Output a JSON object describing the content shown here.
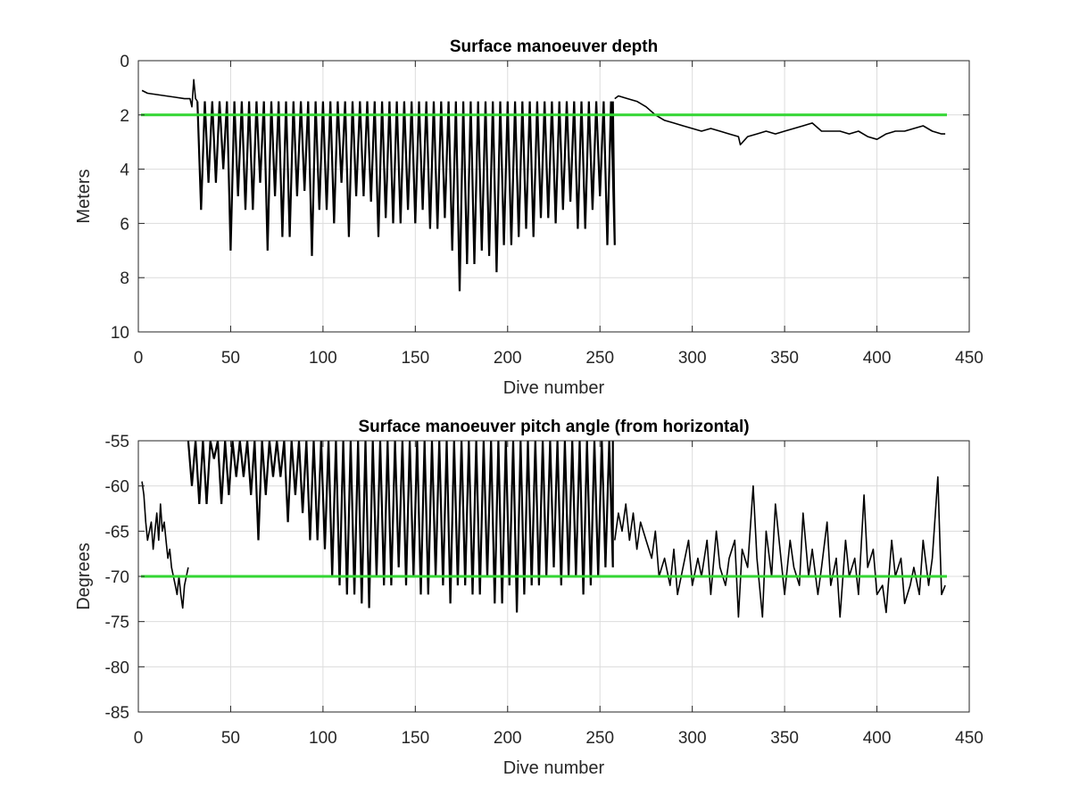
{
  "chart_data": [
    {
      "type": "line",
      "title": "Surface manoeuver depth",
      "xlabel": "Dive number",
      "ylabel": "Meters",
      "xlim": [
        0,
        450
      ],
      "ylim": [
        0,
        10
      ],
      "y_reversed": true,
      "xticks": [
        0,
        50,
        100,
        150,
        200,
        250,
        300,
        350,
        400,
        450
      ],
      "yticks": [
        0,
        2,
        4,
        6,
        8,
        10
      ],
      "grid": true,
      "colors": {
        "series": "#000000",
        "threshold": "#33d633"
      },
      "threshold": 2,
      "series": [
        {
          "segments": [
            {
              "x": [
                2,
                5,
                10,
                15,
                20,
                25,
                28,
                29,
                30,
                31,
                32
              ],
              "y": [
                1.1,
                1.2,
                1.25,
                1.3,
                1.35,
                1.4,
                1.4,
                1.7,
                0.7,
                1.4,
                1.5
              ]
            },
            {
              "x": [
                258,
                260,
                265,
                270,
                275,
                280,
                285,
                290,
                295,
                300,
                305,
                310,
                315,
                320,
                325,
                326,
                330,
                335,
                340,
                345,
                350,
                355,
                360,
                365,
                370,
                375,
                380,
                385,
                390,
                395,
                400,
                405,
                410,
                415,
                420,
                425,
                430,
                435,
                437
              ],
              "y": [
                1.4,
                1.3,
                1.4,
                1.5,
                1.7,
                2.0,
                2.2,
                2.3,
                2.4,
                2.5,
                2.6,
                2.5,
                2.6,
                2.7,
                2.8,
                3.1,
                2.8,
                2.7,
                2.6,
                2.7,
                2.6,
                2.5,
                2.4,
                2.3,
                2.6,
                2.6,
                2.6,
                2.7,
                2.6,
                2.8,
                2.9,
                2.7,
                2.6,
                2.6,
                2.5,
                2.4,
                2.6,
                2.7,
                2.7
              ]
            }
          ],
          "oscillation": {
            "x_start": 32,
            "x_end": 257,
            "period": 4,
            "top": 1.5,
            "peaks_x": [
              35,
              40,
              45,
              50,
              55,
              60,
              65,
              70,
              75,
              80,
              85,
              90,
              95,
              100,
              105,
              110,
              115,
              120,
              125,
              130,
              135,
              140,
              145,
              150,
              155,
              160,
              165,
              170,
              175,
              180,
              185,
              190,
              195,
              200,
              205,
              210,
              215,
              220,
              225,
              230,
              235,
              240,
              245,
              250,
              255
            ],
            "peaks_y": [
              5.5,
              4.5,
              4.0,
              7.0,
              5.0,
              5.5,
              4.5,
              7.0,
              5.0,
              6.5,
              5.0,
              4.8,
              7.2,
              5.5,
              6.0,
              4.5,
              6.5,
              5.0,
              5.2,
              6.5,
              5.8,
              6.0,
              5.5,
              6.0,
              5.5,
              6.2,
              5.8,
              7.0,
              8.5,
              7.5,
              7.0,
              7.2,
              7.8,
              6.8,
              6.5,
              6.2,
              6.5,
              5.8,
              6.0,
              5.5,
              5.2,
              6.2,
              5.5,
              5.0,
              6.8
            ]
          }
        }
      ]
    },
    {
      "type": "line",
      "title": "Surface manoeuver pitch angle (from horizontal)",
      "xlabel": "Dive number",
      "ylabel": "Degrees",
      "xlim": [
        0,
        450
      ],
      "ylim": [
        -85,
        -55
      ],
      "xticks": [
        0,
        50,
        100,
        150,
        200,
        250,
        300,
        350,
        400,
        450
      ],
      "yticks": [
        -55,
        -60,
        -65,
        -70,
        -75,
        -80,
        -85
      ],
      "grid": true,
      "colors": {
        "series": "#000000",
        "threshold": "#33d633"
      },
      "threshold": -70,
      "series": [
        {
          "segments": [
            {
              "x": [
                2,
                3,
                4,
                5,
                6,
                7,
                8,
                9,
                10,
                11,
                12,
                13,
                14,
                15,
                16,
                17,
                18,
                19,
                20,
                21,
                22,
                23,
                24,
                25,
                26,
                27
              ],
              "y": [
                -59.5,
                -61,
                -64,
                -66,
                -65,
                -64,
                -67,
                -65,
                -63,
                -66,
                -62,
                -65,
                -64,
                -66,
                -68,
                -67,
                -69,
                -70,
                -71,
                -72,
                -70,
                -72,
                -73.5,
                -71,
                -70,
                -69
              ]
            },
            {
              "x": [
                258,
                260,
                262,
                264,
                266,
                268,
                270,
                272,
                275,
                278,
                280,
                282,
                285,
                288,
                290,
                292,
                295,
                298,
                300,
                303,
                305,
                308,
                310,
                313,
                315,
                318,
                320,
                323,
                325,
                327,
                330,
                333,
                335,
                338,
                340,
                343,
                345,
                348,
                350,
                353,
                355,
                358,
                360,
                363,
                365,
                368,
                370,
                373,
                375,
                378,
                380,
                383,
                385,
                388,
                390,
                393,
                395,
                398,
                400,
                403,
                405,
                408,
                410,
                413,
                415,
                418,
                420,
                423,
                425,
                428,
                430,
                433,
                435,
                437
              ],
              "y": [
                -66,
                -63,
                -65,
                -62,
                -66,
                -63,
                -67,
                -64,
                -66,
                -68,
                -65,
                -70,
                -68,
                -71,
                -67,
                -72,
                -69,
                -66,
                -71,
                -68,
                -70,
                -66,
                -72,
                -65,
                -69,
                -71,
                -68,
                -66,
                -74.5,
                -67,
                -69,
                -60,
                -68,
                -74.5,
                -65,
                -70,
                -62,
                -68,
                -72,
                -66,
                -69,
                -71,
                -63,
                -70,
                -67,
                -72,
                -69,
                -64,
                -71,
                -68,
                -74.5,
                -66,
                -70,
                -68,
                -72,
                -61,
                -69,
                -67,
                -72,
                -71,
                -74,
                -66,
                -70,
                -68,
                -73,
                -71,
                -69,
                -72,
                -66,
                -71,
                -68,
                -59,
                -72,
                -71
              ]
            }
          ],
          "oscillation": {
            "x_start": 27,
            "x_end": 257,
            "period": 4,
            "top": -55,
            "peaks_x": [
              30,
              35,
              40,
              45,
              50,
              55,
              60,
              65,
              70,
              75,
              80,
              85,
              90,
              95,
              100,
              105,
              110,
              115,
              120,
              125,
              130,
              135,
              140,
              145,
              150,
              155,
              160,
              165,
              170,
              175,
              180,
              185,
              190,
              195,
              200,
              205,
              210,
              215,
              220,
              225,
              230,
              235,
              240,
              245,
              250,
              255
            ],
            "peaks_y": [
              -60,
              -62,
              -57,
              -62,
              -61,
              -59,
              -61,
              -66,
              -61,
              -59,
              -64,
              -61,
              -63,
              -66,
              -67,
              -70,
              -71,
              -72,
              -73,
              -73.5,
              -70,
              -71,
              -69,
              -71,
              -70,
              -72,
              -70,
              -71,
              -73,
              -71,
              -72,
              -72,
              -70,
              -73,
              -71,
              -74,
              -72,
              -71,
              -70,
              -69,
              -71,
              -70,
              -72,
              -71,
              -70,
              -69
            ]
          }
        }
      ]
    }
  ]
}
